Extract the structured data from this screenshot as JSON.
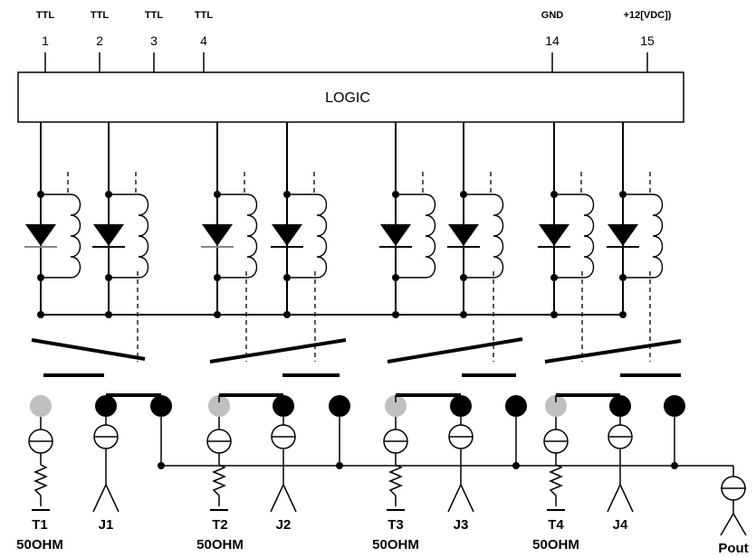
{
  "pins": [
    {
      "type": "TTL",
      "num": "1"
    },
    {
      "type": "TTL",
      "num": "2"
    },
    {
      "type": "TTL",
      "num": "3"
    },
    {
      "type": "TTL",
      "num": "4"
    },
    {
      "type": "GND",
      "num": "14"
    },
    {
      "type": "+12[VDC])",
      "num": "15"
    }
  ],
  "logic_label": "LOGIC",
  "terminations": [
    {
      "name": "T1",
      "value": "50OHM"
    },
    {
      "name": "T2",
      "value": "50OHM"
    },
    {
      "name": "T3",
      "value": "50OHM"
    },
    {
      "name": "T4",
      "value": "50OHM"
    }
  ],
  "ports": [
    "J1",
    "J2",
    "J3",
    "J4"
  ],
  "output_port": "Pout",
  "colors": {
    "line": "#000000",
    "inactive_contact": "#bfbfbf"
  }
}
